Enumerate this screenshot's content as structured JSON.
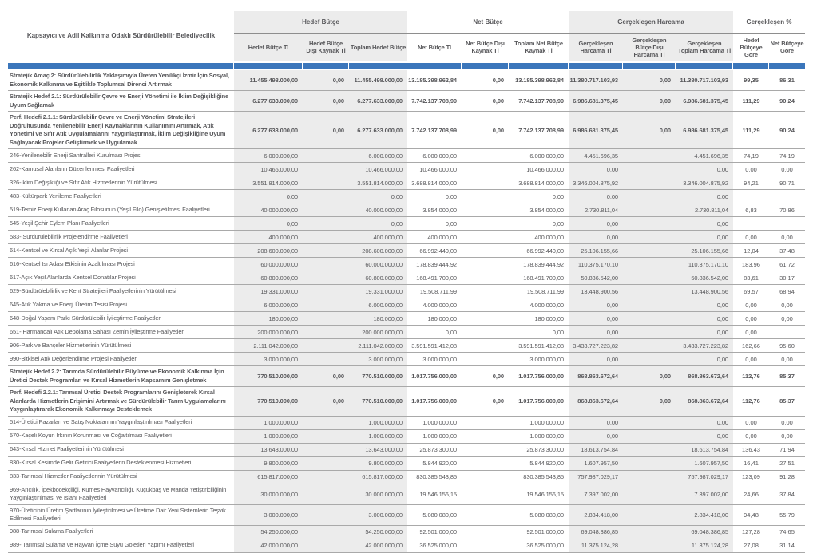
{
  "table": {
    "title_column_header": "Kapsayıcı ve Adil Kalkınma Odaklı Sürdürülebilir Belediyecilik",
    "groups": [
      {
        "label": "Hedef Bütçe",
        "shaded": true,
        "columns": [
          "Hedef Bütçe Tl",
          "Hedef Bütçe Dışı Kaynak Tl",
          "Toplam Hedef Bütçe"
        ]
      },
      {
        "label": "Net Bütçe",
        "shaded": false,
        "columns": [
          "Net Bütçe Tl",
          "Net Bütçe Dışı Kaynak Tl",
          "Toplam Net Bütçe Kaynak Tl"
        ]
      },
      {
        "label": "Gerçekleşen Harcama",
        "shaded": true,
        "columns": [
          "Gerçekleşen Harcama Tl",
          "Gerçekleşen Bütçe Dışı Harcama Tl",
          "Gerçekleşen Toplam Harcama Tl"
        ]
      },
      {
        "label": "Gerçekleşen %",
        "shaded": false,
        "columns": [
          "Hedef Bütçeye Göre",
          "Net Bütçeye Göre"
        ]
      }
    ],
    "colors": {
      "accent_bar": "#3b76bb",
      "shaded_column_bg": "#ececec",
      "text": "#57575a",
      "row_border": "#a9a9a9"
    },
    "rows": [
      {
        "emphasis": true,
        "label": "Stratejik Amaç 2: Sürdürülebilirlik Yaklaşımıyla Üreten Yenilikçi İzmir İçin Sosyal, Ekonomik Kalkınma ve Eşitlikle Toplumsal Direnci Artırmak",
        "values": [
          "11.455.498.000,00",
          "0,00",
          "11.455.498.000,00",
          "13.185.398.962,84",
          "0,00",
          "13.185.398.962,84",
          "11.380.717.103,93",
          "0,00",
          "11.380.717.103,93",
          "99,35",
          "86,31"
        ]
      },
      {
        "emphasis": true,
        "label": "Stratejik Hedef 2.1: Sürdürülebilir Çevre ve Enerji Yönetimi ile İklim Değişikliğine Uyum Sağlamak",
        "values": [
          "6.277.633.000,00",
          "0,00",
          "6.277.633.000,00",
          "7.742.137.708,99",
          "0,00",
          "7.742.137.708,99",
          "6.986.681.375,45",
          "0,00",
          "6.986.681.375,45",
          "111,29",
          "90,24"
        ]
      },
      {
        "emphasis": true,
        "label": "Perf. Hedefi 2.1.1: Sürdürülebilir Çevre ve Enerji Yönetimi Stratejileri Doğrultusunda Yenilenebilir Enerji Kaynaklarının Kullanımını Artırmak, Atık Yönetimi ve Sıfır Atık Uygulamalarını Yaygınlaştırmak, İklim Değişikliğine Uyum Sağlayacak Projeler Geliştirmek ve Uygulamak",
        "values": [
          "6.277.633.000,00",
          "0,00",
          "6.277.633.000,00",
          "7.742.137.708,99",
          "0,00",
          "7.742.137.708,99",
          "6.986.681.375,45",
          "0,00",
          "6.986.681.375,45",
          "111,29",
          "90,24"
        ]
      },
      {
        "emphasis": false,
        "label": "246-Yenilenebilir Enerji Santralleri Kurulması Projesi",
        "values": [
          "6.000.000,00",
          "",
          "6.000.000,00",
          "6.000.000,00",
          "",
          "6.000.000,00",
          "4.451.696,35",
          "",
          "4.451.696,35",
          "74,19",
          "74,19"
        ]
      },
      {
        "emphasis": false,
        "label": "262-Kamusal Alanların Düzenlenmesi Faaliyetleri",
        "values": [
          "10.466.000,00",
          "",
          "10.466.000,00",
          "10.466.000,00",
          "",
          "10.466.000,00",
          "0,00",
          "",
          "0,00",
          "0,00",
          "0,00"
        ]
      },
      {
        "emphasis": false,
        "label": "326-İklim Değişikliği ve Sıfır Atık Hizmetlerinin Yürütülmesi",
        "values": [
          "3.551.814.000,00",
          "",
          "3.551.814.000,00",
          "3.688.814.000,00",
          "",
          "3.688.814.000,00",
          "3.346.004.875,92",
          "",
          "3.346.004.875,92",
          "94,21",
          "90,71"
        ]
      },
      {
        "emphasis": false,
        "label": "483-Kültürpark Yenileme Faaliyetleri",
        "values": [
          "0,00",
          "",
          "0,00",
          "0,00",
          "",
          "0,00",
          "0,00",
          "",
          "0,00",
          "",
          ""
        ]
      },
      {
        "emphasis": false,
        "label": "519-Temiz Enerji Kullanan Araç Filosunun (Yeşil Filo) Genişletilmesi Faaliyetleri",
        "values": [
          "40.000.000,00",
          "",
          "40.000.000,00",
          "3.854.000,00",
          "",
          "3.854.000,00",
          "2.730.811,04",
          "",
          "2.730.811,04",
          "6,83",
          "70,86"
        ]
      },
      {
        "emphasis": false,
        "label": "545-Yeşil Şehir Eylem Planı Faaliyetleri",
        "values": [
          "0,00",
          "",
          "0,00",
          "0,00",
          "",
          "0,00",
          "0,00",
          "",
          "0,00",
          "",
          ""
        ]
      },
      {
        "emphasis": false,
        "label": "583- Sürdürülebilirlik Projelendirme Faaliyetleri",
        "values": [
          "400.000,00",
          "",
          "400.000,00",
          "400.000,00",
          "",
          "400.000,00",
          "0,00",
          "",
          "0,00",
          "0,00",
          "0,00"
        ]
      },
      {
        "emphasis": false,
        "label": "614-Kentsel ve Kırsal Açık Yeşil Alanlar Projesi",
        "values": [
          "208.600.000,00",
          "",
          "208.600.000,00",
          "66.992.440,00",
          "",
          "66.992.440,00",
          "25.106.155,66",
          "",
          "25.106.155,66",
          "12,04",
          "37,48"
        ]
      },
      {
        "emphasis": false,
        "label": "616-Kentsel Isı Adası Etkisinin Azaltılması Projesi",
        "values": [
          "60.000.000,00",
          "",
          "60.000.000,00",
          "178.839.444,92",
          "",
          "178.839.444,92",
          "110.375.170,10",
          "",
          "110.375.170,10",
          "183,96",
          "61,72"
        ]
      },
      {
        "emphasis": false,
        "label": "617-Açık Yeşil Alanlarda Kentsel Donatılar Projesi",
        "values": [
          "60.800.000,00",
          "",
          "60.800.000,00",
          "168.491.700,00",
          "",
          "168.491.700,00",
          "50.836.542,00",
          "",
          "50.836.542,00",
          "83,61",
          "30,17"
        ]
      },
      {
        "emphasis": false,
        "label": "629-Sürdürülebilirlik ve Kent Stratejileri Faaliyetlerinin Yürütülmesi",
        "values": [
          "19.331.000,00",
          "",
          "19.331.000,00",
          "19.508.711,99",
          "",
          "19.508.711,99",
          "13.448.900,56",
          "",
          "13.448.900,56",
          "69,57",
          "68,94"
        ]
      },
      {
        "emphasis": false,
        "label": "645-Atık Yakma ve Enerji Üretim Tesisi Projesi",
        "values": [
          "6.000.000,00",
          "",
          "6.000.000,00",
          "4.000.000,00",
          "",
          "4.000.000,00",
          "0,00",
          "",
          "0,00",
          "0,00",
          "0,00"
        ]
      },
      {
        "emphasis": false,
        "label": "648-Doğal Yaşam Parkı Sürdürülebilir İyileştirme Faaliyetleri",
        "values": [
          "180.000,00",
          "",
          "180.000,00",
          "180.000,00",
          "",
          "180.000,00",
          "0,00",
          "",
          "0,00",
          "0,00",
          "0,00"
        ]
      },
      {
        "emphasis": false,
        "label": "651- Harmandalı Atık Depolama Sahası Zemin İyileştirme Faaliyetleri",
        "values": [
          "200.000.000,00",
          "",
          "200.000.000,00",
          "0,00",
          "",
          "0,00",
          "0,00",
          "",
          "0,00",
          "0,00",
          ""
        ]
      },
      {
        "emphasis": false,
        "label": "906-Park ve Bahçeler Hizmetlerinin Yürütülmesi",
        "values": [
          "2.111.042.000,00",
          "",
          "2.111.042.000,00",
          "3.591.591.412,08",
          "",
          "3.591.591.412,08",
          "3.433.727.223,82",
          "",
          "3.433.727.223,82",
          "162,66",
          "95,60"
        ]
      },
      {
        "emphasis": false,
        "label": "990-Bitkisel Atık Değerlendirme Projesi Faaliyetleri",
        "values": [
          "3.000.000,00",
          "",
          "3.000.000,00",
          "3.000.000,00",
          "",
          "3.000.000,00",
          "0,00",
          "",
          "0,00",
          "0,00",
          "0,00"
        ]
      },
      {
        "emphasis": true,
        "label": "Stratejik Hedef 2.2: Tarımda Sürdürülebilir Büyüme ve Ekonomik Kalkınma İçin Üretici Destek Programları ve Kırsal Hizmetlerin Kapsamını Genişletmek",
        "values": [
          "770.510.000,00",
          "0,00",
          "770.510.000,00",
          "1.017.756.000,00",
          "0,00",
          "1.017.756.000,00",
          "868.863.672,64",
          "0,00",
          "868.863.672,64",
          "112,76",
          "85,37"
        ]
      },
      {
        "emphasis": true,
        "label": "Perf. Hedefi 2.2.1: Tarımsal Üretici Destek Programlarını Genişleterek Kırsal Alanlarda Hizmetlerin Erişimini Artırmak ve Sürdürülebilir Tarım Uygulamalarını Yaygınlaştırarak Ekonomik Kalkınmayı Desteklemek",
        "values": [
          "770.510.000,00",
          "0,00",
          "770.510.000,00",
          "1.017.756.000,00",
          "0,00",
          "1.017.756.000,00",
          "868.863.672,64",
          "0,00",
          "868.863.672,64",
          "112,76",
          "85,37"
        ]
      },
      {
        "emphasis": false,
        "label": "514-Üretici Pazarları ve Satış Noktalarının Yaygınlaştırılması Faaliyetleri",
        "values": [
          "1.000.000,00",
          "",
          "1.000.000,00",
          "1.000.000,00",
          "",
          "1.000.000,00",
          "0,00",
          "",
          "0,00",
          "0,00",
          "0,00"
        ]
      },
      {
        "emphasis": false,
        "label": "570-Kaçeli Koyun Irkının Korunması ve Çoğaltılması Faaliyetleri",
        "values": [
          "1.000.000,00",
          "",
          "1.000.000,00",
          "1.000.000,00",
          "",
          "1.000.000,00",
          "0,00",
          "",
          "0,00",
          "0,00",
          "0,00"
        ]
      },
      {
        "emphasis": false,
        "label": "643-Kırsal Hizmet Faaliyetlerinin Yürütülmesi",
        "values": [
          "13.643.000,00",
          "",
          "13.643.000,00",
          "25.873.300,00",
          "",
          "25.873.300,00",
          "18.613.754,84",
          "",
          "18.613.754,84",
          "136,43",
          "71,94"
        ]
      },
      {
        "emphasis": false,
        "label": "830-Kırsal Kesimde Gelir Getirici Faaliyetlerin Desteklenmesi Hizmetleri",
        "values": [
          "9.800.000,00",
          "",
          "9.800.000,00",
          "5.844.920,00",
          "",
          "5.844.920,00",
          "1.607.957,50",
          "",
          "1.607.957,50",
          "16,41",
          "27,51"
        ]
      },
      {
        "emphasis": false,
        "label": "833-Tarımsal Hizmetler Faaliyetlerinin Yürütülmesi",
        "values": [
          "615.817.000,00",
          "",
          "615.817.000,00",
          "830.385.543,85",
          "",
          "830.385.543,85",
          "757.987.029,17",
          "",
          "757.987.029,17",
          "123,09",
          "91,28"
        ]
      },
      {
        "emphasis": false,
        "label": "969-Arıcılık, İpekböcekçiliği, Kümes Hayvancılığı, Küçükbaş ve Manda Yetiştiriciliğinin Yaygınlaştırılması ve Islahı Faaliyetleri",
        "values": [
          "30.000.000,00",
          "",
          "30.000.000,00",
          "19.546.156,15",
          "",
          "19.546.156,15",
          "7.397.002,00",
          "",
          "7.397.002,00",
          "24,66",
          "37,84"
        ]
      },
      {
        "emphasis": false,
        "label": "970-Üreticinin Üretim Şartlarının İyileştirilmesi ve Üretime Dair Yeni Sistemlerin Teşvik Edilmesi Faaliyetleri",
        "values": [
          "3.000.000,00",
          "",
          "3.000.000,00",
          "5.080.080,00",
          "",
          "5.080.080,00",
          "2.834.418,00",
          "",
          "2.834.418,00",
          "94,48",
          "55,79"
        ]
      },
      {
        "emphasis": false,
        "label": "988-Tarımsal Sulama Faaliyetleri",
        "values": [
          "54.250.000,00",
          "",
          "54.250.000,00",
          "92.501.000,00",
          "",
          "92.501.000,00",
          "69.048.386,85",
          "",
          "69.048.386,85",
          "127,28",
          "74,65"
        ]
      },
      {
        "emphasis": false,
        "label": "989- Tarımsal Sulama ve Hayvan İçme Suyu Göletleri Yapımı Faaliyetleri",
        "values": [
          "42.000.000,00",
          "",
          "42.000.000,00",
          "36.525.000,00",
          "",
          "36.525.000,00",
          "11.375.124,28",
          "",
          "11.375.124,28",
          "27,08",
          "31,14"
        ]
      }
    ]
  }
}
